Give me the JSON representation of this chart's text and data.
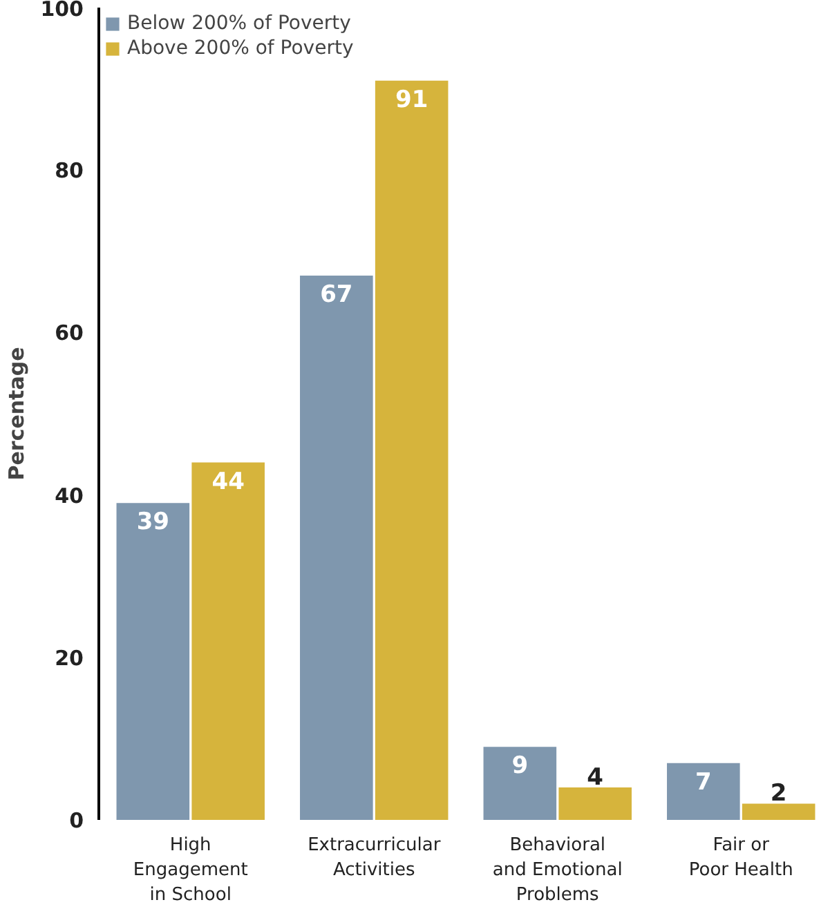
{
  "chart_data": {
    "type": "bar",
    "categories": [
      "High\nEngagement\nin School",
      "Extracurricular\nActivities",
      "Behavioral\nand Emotional\nProblems",
      "Fair or\nPoor Health"
    ],
    "ylabel": "Percentage",
    "ylim": [
      0,
      100
    ],
    "yticks": [
      0,
      20,
      40,
      60,
      80,
      100
    ],
    "grid": false,
    "legend": "top left",
    "data_labels": true,
    "series": [
      {
        "name": "Below 200% of Poverty",
        "color": "#7f97ae",
        "values": [
          39,
          67,
          9,
          7
        ]
      },
      {
        "name": "Above 200% of Poverty",
        "color": "#d6b43c",
        "values": [
          44,
          91,
          4,
          2
        ]
      }
    ]
  }
}
